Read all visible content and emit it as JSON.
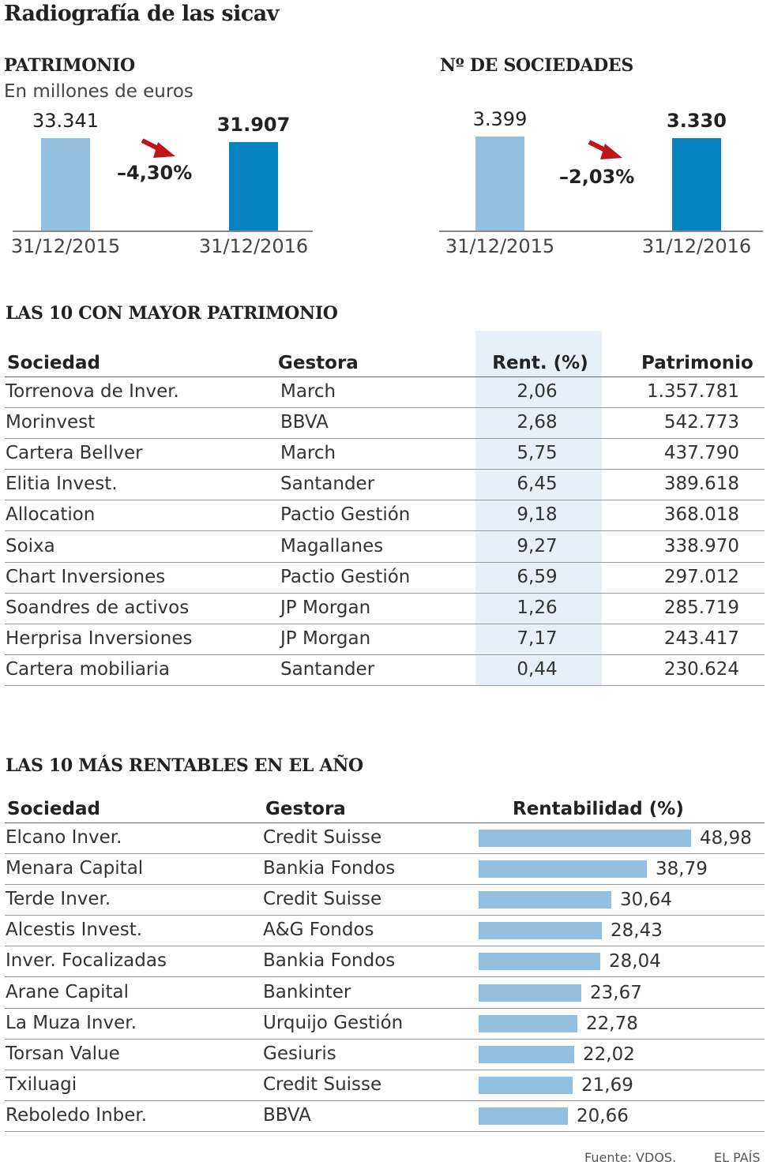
{
  "title": "Radiografía de las sicav",
  "patrimonio": {
    "heading": "PATRIMONIO",
    "subtitle": "En millones de euros",
    "change": "–4,30%",
    "bars": [
      {
        "date": "31/12/2015",
        "label": "33.341",
        "value": 33341
      },
      {
        "date": "31/12/2016",
        "label": "31.907",
        "value": 31907
      }
    ]
  },
  "sociedades": {
    "heading": "Nº DE SOCIEDADES",
    "change": "–2,03%",
    "bars": [
      {
        "date": "31/12/2015",
        "label": "3.399",
        "value": 3399
      },
      {
        "date": "31/12/2016",
        "label": "3.330",
        "value": 3330
      }
    ]
  },
  "top_patrimonio": {
    "heading": "LAS 10 CON MAYOR PATRIMONIO",
    "headers": [
      "Sociedad",
      "Gestora",
      "Rent. (%)",
      "Patrimonio"
    ],
    "rows": [
      [
        "Torrenova de Inver.",
        "March",
        "2,06",
        "1.357.781"
      ],
      [
        "Morinvest",
        "BBVA",
        "2,68",
        "542.773"
      ],
      [
        "Cartera Bellver",
        "March",
        "5,75",
        "437.790"
      ],
      [
        "Elitia Invest.",
        "Santander",
        "6,45",
        "389.618"
      ],
      [
        "Allocation",
        "Pactio Gestión",
        "9,18",
        "368.018"
      ],
      [
        "Soixa",
        "Magallanes",
        "9,27",
        "338.970"
      ],
      [
        "Chart Inversiones",
        "Pactio Gestión",
        "6,59",
        "297.012"
      ],
      [
        "Soandres de activos",
        "JP Morgan",
        "1,26",
        "285.719"
      ],
      [
        "Herprisa Inversiones",
        "JP Morgan",
        "7,17",
        "243.417"
      ],
      [
        "Cartera mobiliaria",
        "Santander",
        "0,44",
        "230.624"
      ]
    ]
  },
  "top_rentables": {
    "heading": "LAS 10 MÁS RENTABLES EN EL AÑO",
    "headers": [
      "Sociedad",
      "Gestora",
      "Rentabilidad (%)"
    ],
    "rows": [
      {
        "sociedad": "Elcano Inver.",
        "gestora": "Credit Suisse",
        "label": "48,98",
        "value": 48.98
      },
      {
        "sociedad": "Menara Capital",
        "gestora": "Bankia Fondos",
        "label": "38,79",
        "value": 38.79
      },
      {
        "sociedad": "Terde Inver.",
        "gestora": "Credit Suisse",
        "label": "30,64",
        "value": 30.64
      },
      {
        "sociedad": "Alcestis Invest.",
        "gestora": "A&G Fondos",
        "label": "28,43",
        "value": 28.43
      },
      {
        "sociedad": "Inver. Focalizadas",
        "gestora": "Bankia Fondos",
        "label": "28,04",
        "value": 28.04
      },
      {
        "sociedad": "Arane Capital",
        "gestora": "Bankinter",
        "label": "23,67",
        "value": 23.67
      },
      {
        "sociedad": "La Muza Inver.",
        "gestora": "Urquijo Gestión",
        "label": "22,78",
        "value": 22.78
      },
      {
        "sociedad": "Torsan Value",
        "gestora": "Gesiuris",
        "label": "22,02",
        "value": 22.02
      },
      {
        "sociedad": "Txiluagi",
        "gestora": "Credit Suisse",
        "label": "21,69",
        "value": 21.69
      },
      {
        "sociedad": "Reboledo Inber.",
        "gestora": "BBVA",
        "label": "20,66",
        "value": 20.66
      }
    ]
  },
  "footer": {
    "source": "Fuente: VDOS.",
    "brand": "EL PAÍS"
  },
  "colors": {
    "bar_light": "#93bfe0",
    "bar_dark": "#0783c2",
    "arrow": "#c0141c",
    "highlight": "#e7f0f8"
  },
  "chart_data": [
    {
      "type": "bar",
      "title": "PATRIMONIO",
      "subtitle": "En millones de euros",
      "categories": [
        "31/12/2015",
        "31/12/2016"
      ],
      "values": [
        33341,
        31907
      ],
      "annotation": "–4,30%"
    },
    {
      "type": "bar",
      "title": "Nº DE SOCIEDADES",
      "categories": [
        "31/12/2015",
        "31/12/2016"
      ],
      "values": [
        3399,
        3330
      ],
      "annotation": "–2,03%"
    },
    {
      "type": "table",
      "title": "LAS 10 CON MAYOR PATRIMONIO",
      "columns": [
        "Sociedad",
        "Gestora",
        "Rent. (%)",
        "Patrimonio"
      ]
    },
    {
      "type": "bar",
      "orientation": "horizontal",
      "title": "LAS 10 MÁS RENTABLES EN EL AÑO",
      "categories": [
        "Elcano Inver.",
        "Menara Capital",
        "Terde Inver.",
        "Alcestis Invest.",
        "Inver. Focalizadas",
        "Arane Capital",
        "La Muza Inver.",
        "Torsan Value",
        "Txiluagi",
        "Reboledo Inber."
      ],
      "values": [
        48.98,
        38.79,
        30.64,
        28.43,
        28.04,
        23.67,
        22.78,
        22.02,
        21.69,
        20.66
      ]
    }
  ]
}
